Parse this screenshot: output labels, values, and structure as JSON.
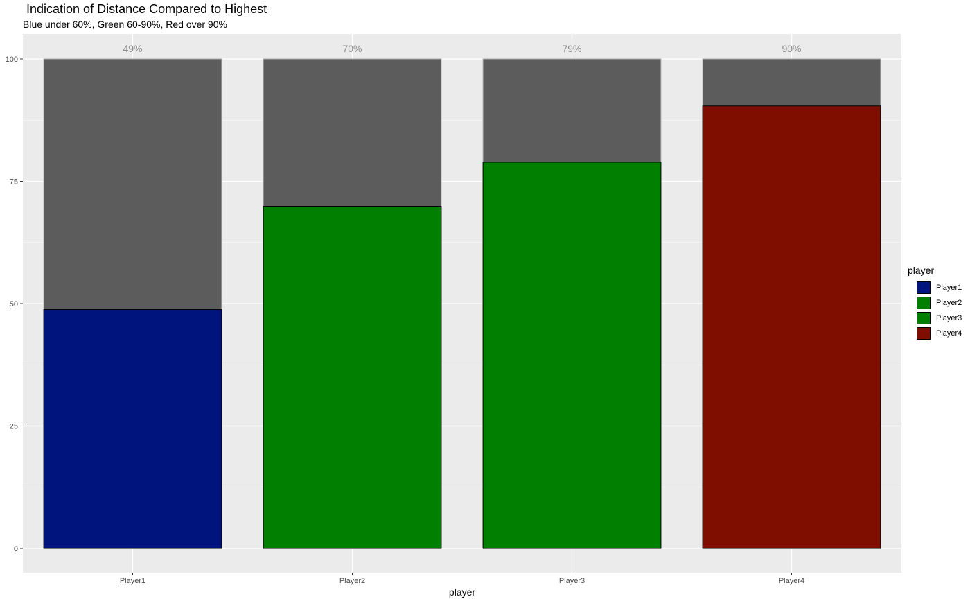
{
  "chart_data": {
    "type": "bar",
    "title": "Indication of Distance Compared to Highest",
    "subtitle": "Blue under 60%, Green 60-90%, Red over 90%",
    "xlabel": "player",
    "ylabel": "",
    "ylim": [
      0,
      100
    ],
    "yticks": [
      0,
      25,
      50,
      75,
      100
    ],
    "categories": [
      "Player1",
      "Player2",
      "Player3",
      "Player4"
    ],
    "values": [
      48.8,
      69.9,
      78.9,
      90.4
    ],
    "background_values": [
      100,
      100,
      100,
      100
    ],
    "data_labels": [
      "49%",
      "70%",
      "79%",
      "90%"
    ],
    "bar_colors": [
      "#00147E",
      "#007F00",
      "#007F00",
      "#7F0D00"
    ],
    "background_color": "#5C5C5C",
    "panel_color": "#EBEBEB",
    "grid": true,
    "legend": {
      "title": "player",
      "position": "right",
      "entries": [
        {
          "label": "Player1",
          "color": "#00147E"
        },
        {
          "label": "Player2",
          "color": "#007F00"
        },
        {
          "label": "Player3",
          "color": "#007F00"
        },
        {
          "label": "Player4",
          "color": "#7F0D00"
        }
      ]
    }
  }
}
